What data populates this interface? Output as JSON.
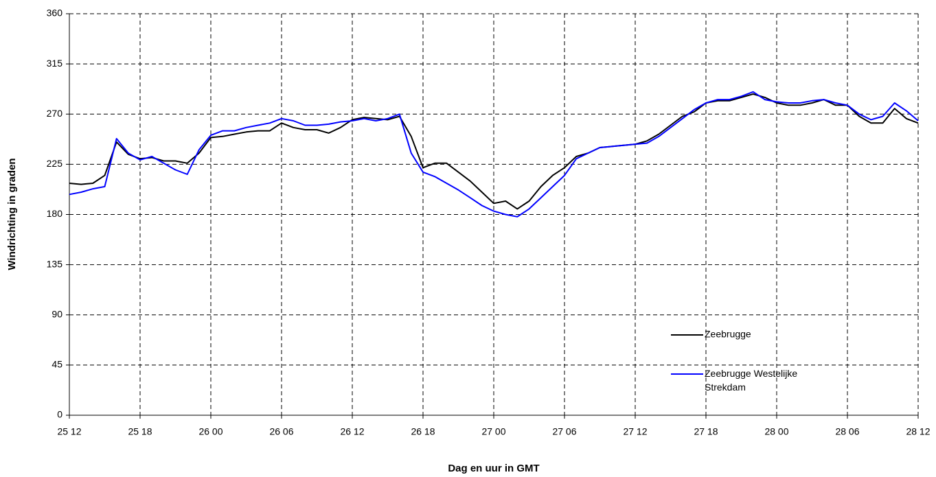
{
  "chart_data": {
    "type": "line",
    "y_label": "Windrichting in graden",
    "x_label": "Dag en uur in GMT",
    "categories": [
      "25 12",
      null,
      null,
      null,
      null,
      null,
      "25 18",
      null,
      null,
      null,
      null,
      null,
      "26 00",
      null,
      null,
      null,
      null,
      null,
      "26 06",
      null,
      null,
      null,
      null,
      null,
      "26 12",
      null,
      null,
      null,
      null,
      null,
      "26 18",
      null,
      null,
      null,
      null,
      null,
      "27 00",
      null,
      null,
      null,
      null,
      null,
      "27 06",
      null,
      null,
      null,
      null,
      null,
      "27 12",
      null,
      null,
      null,
      null,
      null,
      "27 18",
      null,
      null,
      null,
      null,
      null,
      "28 00",
      null,
      null,
      null,
      null,
      null,
      "28 06",
      null,
      null,
      null,
      null,
      null,
      "28 12"
    ],
    "series": [
      {
        "name": "Zeebrugge",
        "color": "#000000",
        "values": [
          208,
          207,
          208,
          215,
          245,
          234,
          230,
          231,
          228,
          228,
          226,
          235,
          249,
          250,
          252,
          254,
          255,
          255,
          262,
          258,
          256,
          256,
          253,
          258,
          265,
          267,
          266,
          265,
          268,
          250,
          222,
          226,
          226,
          218,
          210,
          200,
          190,
          192,
          185,
          192,
          205,
          215,
          222,
          232,
          235,
          240,
          241,
          242,
          243,
          246,
          252,
          260,
          268,
          272,
          280,
          282,
          282,
          285,
          288,
          285,
          280,
          278,
          278,
          280,
          283,
          278,
          278,
          268,
          262,
          262,
          275,
          266,
          262
        ]
      },
      {
        "name": "Zeebrugge Westelijke Strekdam",
        "color": "#0000ff",
        "values": [
          198,
          200,
          203,
          205,
          248,
          235,
          229,
          232,
          226,
          220,
          216,
          238,
          251,
          255,
          255,
          258,
          260,
          262,
          266,
          264,
          260,
          260,
          261,
          263,
          264,
          266,
          264,
          266,
          270,
          235,
          218,
          214,
          208,
          202,
          195,
          188,
          183,
          180,
          178,
          185,
          195,
          205,
          215,
          230,
          235,
          240,
          241,
          242,
          243,
          244,
          250,
          258,
          266,
          274,
          280,
          283,
          283,
          286,
          290,
          283,
          281,
          280,
          280,
          282,
          283,
          280,
          278,
          270,
          265,
          268,
          280,
          273,
          264
        ]
      }
    ],
    "ylim": [
      0,
      360
    ],
    "yticks": [
      0,
      45,
      90,
      135,
      180,
      225,
      270,
      315,
      360
    ],
    "grid": true,
    "legend": "lower-right"
  }
}
